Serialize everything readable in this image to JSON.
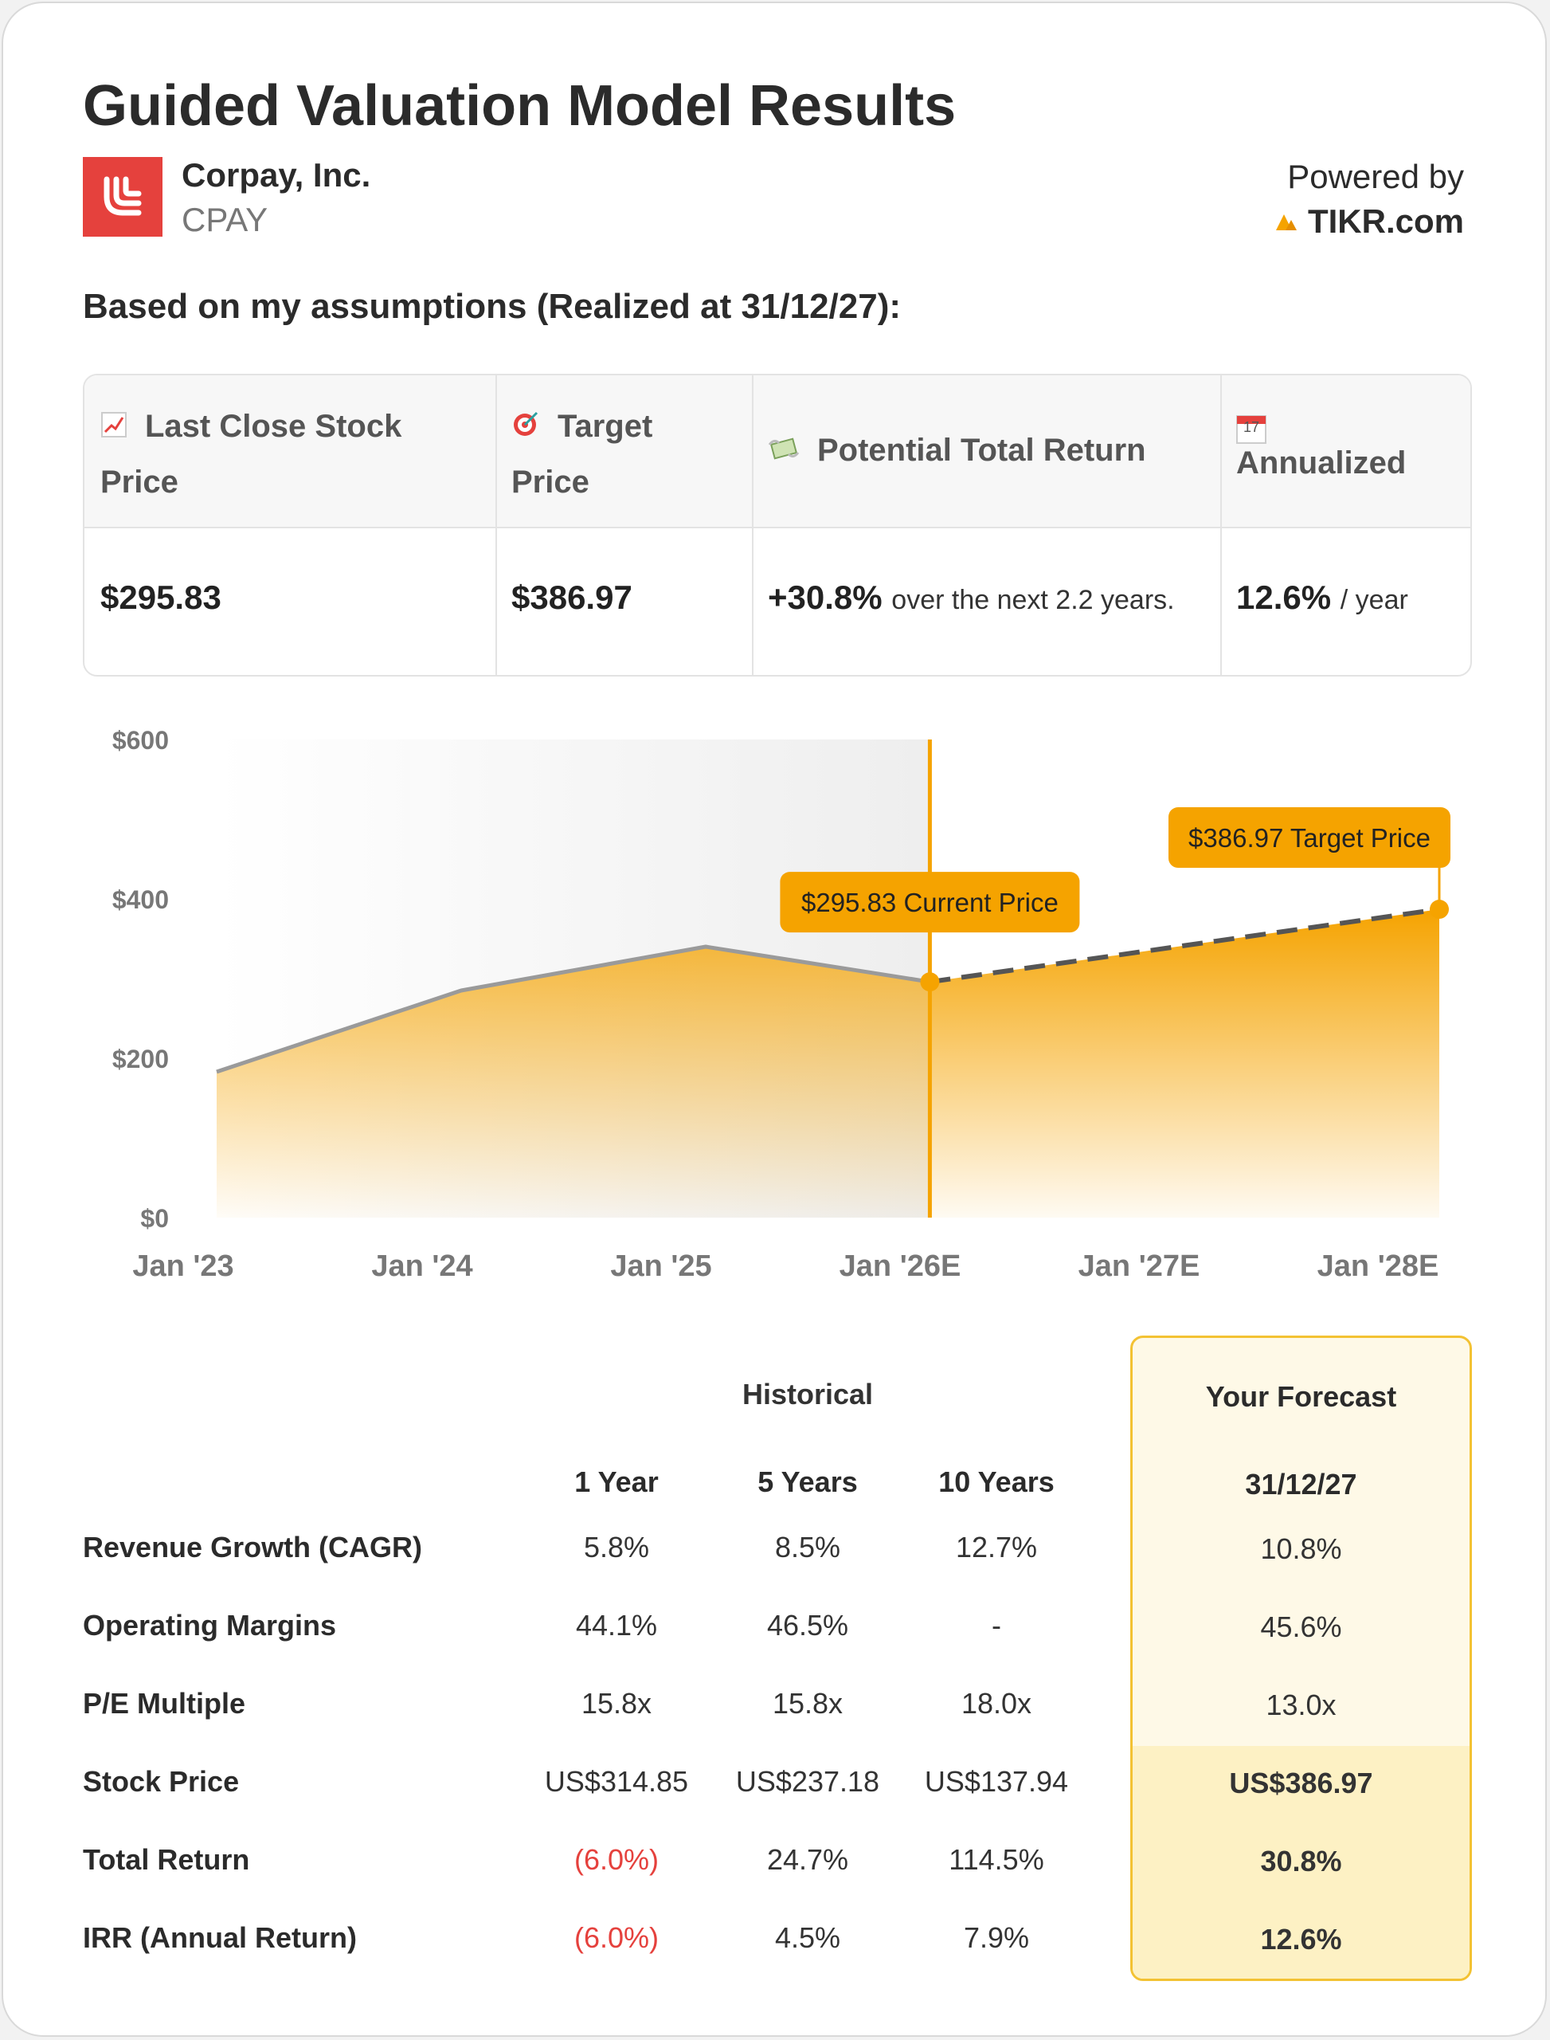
{
  "header": {
    "title": "Guided Valuation Model Results",
    "company": "Corpay, Inc.",
    "ticker": "CPAY",
    "powered_by": "Powered by",
    "brand": "TIKR.com",
    "assumption_line": "Based on my assumptions (Realized at 31/12/27):"
  },
  "summary": {
    "headers": [
      "Last Close Stock Price",
      "Target Price",
      "Potential Total Return",
      "Annualized"
    ],
    "icons": [
      "chart-increasing-icon",
      "target-icon",
      "money-wings-icon",
      "calendar-icon"
    ],
    "calendar_day": "17",
    "last_close": "$295.83",
    "target": "$386.97",
    "return_value": "+30.8%",
    "return_suffix": "over the next 2.2 years.",
    "annualized_value": "12.6%",
    "annualized_suffix": "/ year"
  },
  "chart_data": {
    "type": "area",
    "x_tick_labels": [
      "Jan '23",
      "Jan '24",
      "Jan '25",
      "Jan '26E",
      "Jan '27E",
      "Jan '28E"
    ],
    "y_tick_labels": [
      "$0",
      "$200",
      "$400",
      "$600"
    ],
    "ylim": [
      0,
      600
    ],
    "historical": [
      {
        "x": "2023-01",
        "y": 183
      },
      {
        "x": "2024-01",
        "y": 285
      },
      {
        "x": "2025-01",
        "y": 340
      },
      {
        "x": "2025-12",
        "y": 295.83
      }
    ],
    "forecast": [
      {
        "x": "2025-12",
        "y": 295.83
      },
      {
        "x": "2028-01",
        "y": 386.97
      }
    ],
    "annotations": [
      {
        "label": "$295.83 Current Price",
        "x": "2025-12",
        "y": 295.83
      },
      {
        "label": "$386.97 Target Price",
        "x": "2028-01",
        "y": 386.97
      }
    ],
    "colors": {
      "accent": "#f5a300",
      "historical_line": "#9a9a9a",
      "forecast_line": "#555555"
    }
  },
  "table": {
    "historical_title": "Historical",
    "forecast_title": "Your Forecast",
    "forecast_date": "31/12/27",
    "columns": [
      "1 Year",
      "5 Years",
      "10 Years"
    ],
    "rows": [
      {
        "label": "Revenue Growth (CAGR)",
        "values": [
          "5.8%",
          "8.5%",
          "12.7%"
        ],
        "forecast": "10.8%"
      },
      {
        "label": "Operating Margins",
        "values": [
          "44.1%",
          "46.5%",
          "-"
        ],
        "forecast": "45.6%"
      },
      {
        "label": "P/E Multiple",
        "values": [
          "15.8x",
          "15.8x",
          "18.0x"
        ],
        "forecast": "13.0x"
      },
      {
        "label": "Stock Price",
        "values": [
          "US$314.85",
          "US$237.18",
          "US$137.94"
        ],
        "forecast": "US$386.97"
      },
      {
        "label": "Total Return",
        "values": [
          "(6.0%)",
          "24.7%",
          "114.5%"
        ],
        "forecast": "30.8%"
      },
      {
        "label": "IRR (Annual Return)",
        "values": [
          "(6.0%)",
          "4.5%",
          "7.9%"
        ],
        "forecast": "12.6%"
      }
    ]
  }
}
